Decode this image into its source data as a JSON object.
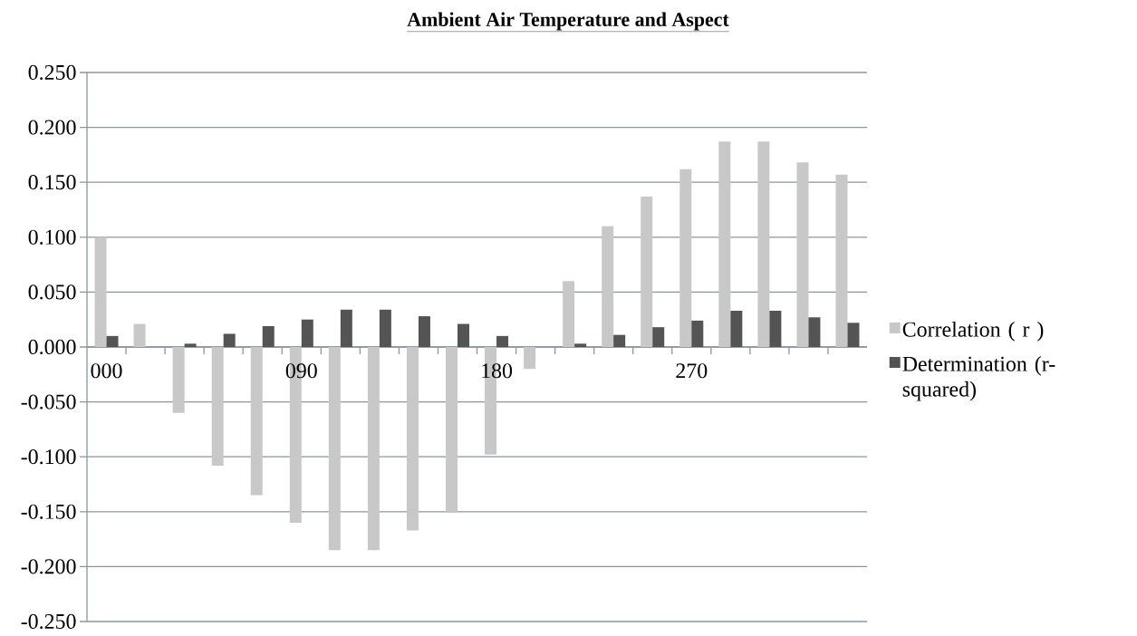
{
  "chart_data": {
    "type": "bar",
    "title": "Ambient Air Temperature and Aspect",
    "categories": [
      "000",
      null,
      null,
      null,
      null,
      "090",
      null,
      null,
      null,
      null,
      "180",
      null,
      null,
      null,
      null,
      "270",
      null,
      null,
      null,
      null
    ],
    "series": [
      {
        "name": "Correlation ( r )",
        "color": "#c8c8c8",
        "values": [
          0.1,
          0.021,
          -0.06,
          -0.108,
          -0.135,
          -0.16,
          -0.185,
          -0.185,
          -0.167,
          -0.15,
          -0.098,
          -0.02,
          0.06,
          0.11,
          0.137,
          0.162,
          0.187,
          0.187,
          0.168,
          0.157
        ]
      },
      {
        "name": "Determination (r-squared)",
        "color": "#545454",
        "values": [
          0.01,
          0.0,
          0.003,
          0.012,
          0.019,
          0.025,
          0.034,
          0.034,
          0.028,
          0.021,
          0.01,
          0.0,
          0.003,
          0.011,
          0.018,
          0.024,
          0.033,
          0.033,
          0.027,
          0.022
        ]
      }
    ],
    "ylim": [
      -0.25,
      0.25
    ],
    "yticks": [
      {
        "value": -0.25,
        "label": "-0.250"
      },
      {
        "value": -0.2,
        "label": "-0.200"
      },
      {
        "value": -0.15,
        "label": "-0.150"
      },
      {
        "value": -0.1,
        "label": "-0.100"
      },
      {
        "value": -0.05,
        "label": "-0.050"
      },
      {
        "value": 0,
        "label": "0.000"
      },
      {
        "value": 0.05,
        "label": "0.050"
      },
      {
        "value": 0.1,
        "label": "0.100"
      },
      {
        "value": 0.15,
        "label": "0.150"
      },
      {
        "value": 0.2,
        "label": "0.200"
      },
      {
        "value": 0.25,
        "label": "0.250"
      }
    ],
    "grid": "y",
    "legend": "right"
  }
}
